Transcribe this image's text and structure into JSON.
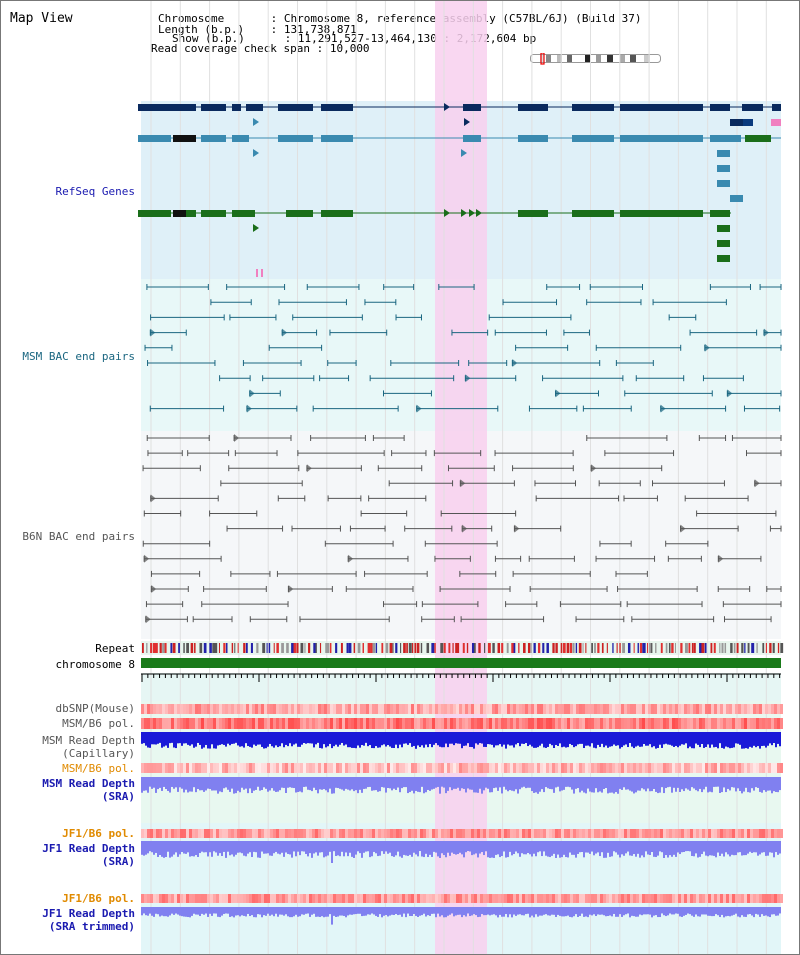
{
  "header": {
    "title": "Map View",
    "lines": [
      {
        "label": "Chromosome       ",
        "value": ": Chromosome 8, reference assembly (C57BL/6J) (Build 37)"
      },
      {
        "label": "Length (b.p.)    ",
        "value": ": 131,738,871"
      },
      {
        "label": "Show (b.p.)      ",
        "value": ": 11,291,527-13,464,130 : 2,172,604 bp"
      },
      {
        "label": "Read coverage check span",
        "value": ": 10,000"
      }
    ]
  },
  "tracks": {
    "refseq": "RefSeq Genes",
    "msm_bac": "MSM BAC end pairs",
    "b6n_bac": "B6N BAC end pairs",
    "repeat": "Repeat",
    "chromosome": "chromosome 8",
    "dbsnp": "dbSNP(Mouse)",
    "msm_b6_pol": "MSM/B6 pol.",
    "msm_depth_cap_1": "MSM Read Depth",
    "msm_depth_cap_2": "(Capillary)",
    "msm_b6_pol_2": "MSM/B6 pol.",
    "msm_depth_sra_1": "MSM Read Depth",
    "msm_depth_sra_2": "(SRA)",
    "jf1_b6_pol": "JF1/B6 pol.",
    "jf1_depth_sra_1": "JF1 Read Depth",
    "jf1_depth_sra_2": "(SRA)",
    "jf1_b6_pol_2": "JF1/B6 pol.",
    "jf1_depth_trim_1": "JF1 Read Depth",
    "jf1_depth_trim_2": "(SRA trimmed)"
  },
  "axis": {
    "ticks": [
      "11600000",
      "12000000",
      "12400000",
      "12800000",
      "13200000"
    ]
  },
  "colors": {
    "refseq_bg": "#dff0f8",
    "msm_bg": "#e8f8f8",
    "b6n_bg": "#f5f7f9",
    "highlight": "#f8d0ee",
    "gene_dark": "#0a2a5e",
    "gene_mid": "#3a8ab0",
    "gene_green": "#1a6e1a",
    "msm_line": "#1a6680",
    "b6n_line": "#555555",
    "depth_blue": "#1a1ad8",
    "depth_light": "#8080f0",
    "pol_red": "#e02020",
    "label_blue": "#1a1ab0",
    "label_teal": "#1a6680",
    "label_gray": "#555555",
    "label_orange": "#e08a00"
  }
}
